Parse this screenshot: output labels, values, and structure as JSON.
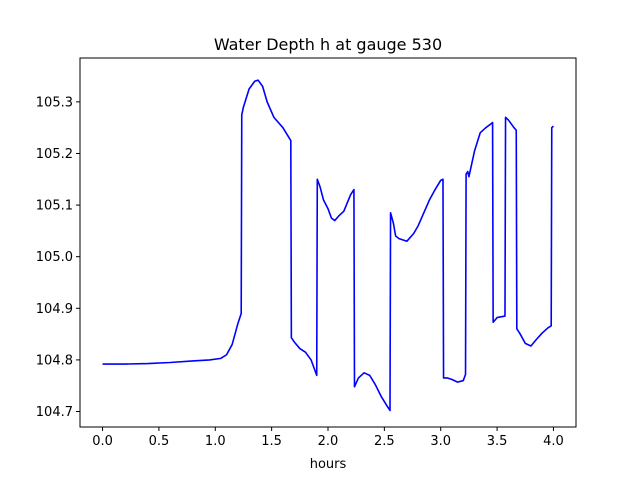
{
  "chart_data": {
    "type": "line",
    "title": "Water Depth h at gauge 530",
    "xlabel": "hours",
    "ylabel": "",
    "xlim": [
      -0.2,
      4.2
    ],
    "ylim": [
      104.67,
      105.385
    ],
    "xticks": [
      0.0,
      0.5,
      1.0,
      1.5,
      2.0,
      2.5,
      3.0,
      3.5,
      4.0
    ],
    "xtick_labels": [
      "0.0",
      "0.5",
      "1.0",
      "1.5",
      "2.0",
      "2.5",
      "3.0",
      "3.5",
      "4.0"
    ],
    "yticks": [
      104.7,
      104.8,
      104.9,
      105.0,
      105.1,
      105.2,
      105.3
    ],
    "ytick_labels": [
      "104.7",
      "104.8",
      "104.9",
      "105.0",
      "105.1",
      "105.2",
      "105.3"
    ],
    "grid": false,
    "series": [
      {
        "color": "#0000ff",
        "x": [
          0.0,
          0.2,
          0.4,
          0.6,
          0.8,
          0.95,
          1.05,
          1.1,
          1.15,
          1.2,
          1.23,
          1.235,
          1.25,
          1.3,
          1.35,
          1.38,
          1.42,
          1.46,
          1.52,
          1.6,
          1.67,
          1.675,
          1.7,
          1.75,
          1.8,
          1.85,
          1.9,
          1.905,
          1.93,
          1.96,
          2.0,
          2.03,
          2.06,
          2.1,
          2.14,
          2.2,
          2.23,
          2.235,
          2.27,
          2.32,
          2.37,
          2.42,
          2.47,
          2.52,
          2.55,
          2.555,
          2.58,
          2.6,
          2.63,
          2.7,
          2.76,
          2.8,
          2.85,
          2.9,
          2.95,
          3.0,
          3.02,
          3.025,
          3.06,
          3.1,
          3.15,
          3.2,
          3.22,
          3.225,
          3.24,
          3.25,
          3.3,
          3.35,
          3.4,
          3.45,
          3.46,
          3.465,
          3.5,
          3.57,
          3.575,
          3.6,
          3.65,
          3.67,
          3.675,
          3.7,
          3.75,
          3.8,
          3.85,
          3.9,
          3.95,
          3.98,
          3.985,
          4.0
        ],
        "y": [
          104.792,
          104.792,
          104.793,
          104.795,
          104.798,
          104.8,
          104.803,
          104.81,
          104.83,
          104.87,
          104.89,
          105.275,
          105.29,
          105.325,
          105.34,
          105.342,
          105.33,
          105.3,
          105.27,
          105.25,
          105.225,
          104.843,
          104.835,
          104.822,
          104.815,
          104.8,
          104.77,
          105.15,
          105.135,
          105.11,
          105.093,
          105.075,
          105.07,
          105.08,
          105.088,
          105.12,
          105.13,
          104.748,
          104.765,
          104.775,
          104.77,
          104.752,
          104.73,
          104.712,
          104.702,
          105.085,
          105.065,
          105.04,
          105.035,
          105.03,
          105.045,
          105.06,
          105.085,
          105.11,
          105.13,
          105.148,
          105.15,
          104.765,
          104.765,
          104.762,
          104.757,
          104.76,
          104.772,
          105.16,
          105.165,
          105.155,
          105.205,
          105.24,
          105.25,
          105.258,
          105.26,
          104.873,
          104.882,
          104.885,
          105.27,
          105.265,
          105.25,
          105.245,
          104.86,
          104.852,
          104.832,
          104.827,
          104.84,
          104.852,
          104.862,
          104.866,
          105.25,
          105.253
        ]
      }
    ]
  }
}
